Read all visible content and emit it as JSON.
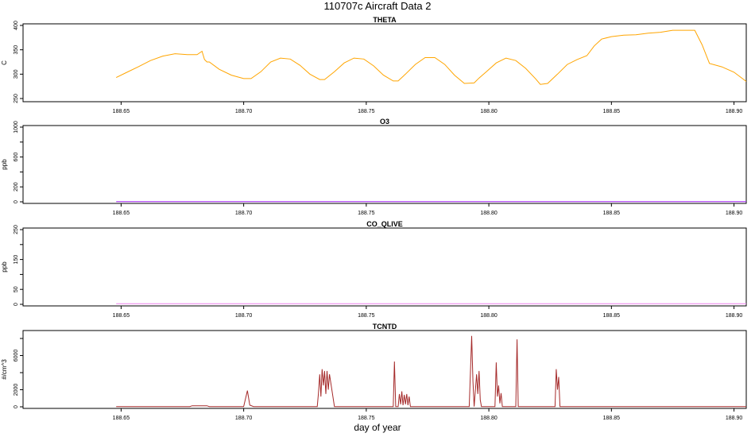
{
  "page": {
    "title": "110707c   Aircraft Data 2",
    "xlabel": "day of year"
  },
  "chart_data": [
    {
      "type": "line",
      "title": "THETA",
      "ylabel": "C",
      "xlim": [
        188.61,
        188.905
      ],
      "ylim": [
        250,
        400
      ],
      "xticks": [
        "188.65",
        "188.70",
        "188.75",
        "188.80",
        "188.85",
        "188.90"
      ],
      "yticks": [
        "250",
        "300",
        "350",
        "400"
      ],
      "color": "#FFA500",
      "series": [
        {
          "x": [
            188.648,
            188.652,
            188.657,
            188.662,
            188.667,
            188.672,
            188.677,
            188.681,
            188.683,
            188.684,
            188.685,
            188.686,
            188.69,
            188.695,
            188.7,
            188.703,
            188.707,
            188.711,
            188.715,
            188.719,
            188.723,
            188.727,
            188.731,
            188.733,
            188.737,
            188.741,
            188.745,
            188.749,
            188.753,
            188.757,
            188.761,
            188.763,
            188.766,
            188.77,
            188.774,
            188.778,
            188.782,
            188.786,
            188.79,
            188.794,
            188.796,
            188.799,
            188.803,
            188.807,
            188.811,
            188.815,
            188.819,
            188.821,
            188.824,
            188.828,
            188.832,
            188.836,
            188.84,
            188.843,
            188.846,
            188.85,
            188.855,
            188.86,
            188.865,
            188.87,
            188.875,
            188.88,
            188.884,
            188.887,
            188.89,
            188.895,
            188.9,
            188.905
          ],
          "y": [
            293,
            303,
            315,
            328,
            337,
            342,
            340,
            340,
            347,
            330,
            325,
            325,
            310,
            298,
            291,
            291,
            305,
            325,
            333,
            331,
            318,
            300,
            289,
            289,
            305,
            323,
            333,
            331,
            317,
            298,
            286,
            286,
            300,
            320,
            334,
            334,
            320,
            298,
            281,
            282,
            292,
            305,
            323,
            333,
            328,
            312,
            291,
            279,
            281,
            300,
            320,
            330,
            338,
            358,
            372,
            377,
            380,
            381,
            384,
            386,
            390,
            390,
            390,
            360,
            322,
            315,
            304,
            285
          ]
        }
      ]
    },
    {
      "type": "line",
      "title": "O3",
      "ylabel": "ppb",
      "xlim": [
        188.61,
        188.905
      ],
      "ylim": [
        0,
        1000
      ],
      "xticks": [
        "188.65",
        "188.70",
        "188.75",
        "188.80",
        "188.85",
        "188.90"
      ],
      "yticks": [
        "0",
        "200",
        "600",
        "1000"
      ],
      "color": "#A020F0",
      "series": [
        {
          "x": [
            188.648,
            188.905
          ],
          "y": [
            2,
            2
          ]
        }
      ]
    },
    {
      "type": "line",
      "title": "CO_QLIVE",
      "ylabel": "ppb",
      "xlim": [
        188.61,
        188.905
      ],
      "ylim": [
        0,
        250
      ],
      "xticks": [
        "188.65",
        "188.70",
        "188.75",
        "188.80",
        "188.85",
        "188.90"
      ],
      "yticks": [
        "0",
        "50",
        "150",
        "250"
      ],
      "color": "#EE82EE",
      "series": [
        {
          "x": [
            188.648,
            188.905
          ],
          "y": [
            2,
            2
          ]
        }
      ]
    },
    {
      "type": "line",
      "title": "TCNTD",
      "ylabel": "#/cm^3",
      "xlim": [
        188.61,
        188.905
      ],
      "ylim": [
        0,
        8000
      ],
      "xticks": [
        "188.65",
        "188.70",
        "188.75",
        "188.80",
        "188.85",
        "188.90"
      ],
      "yticks": [
        "0",
        "2000",
        "6000"
      ],
      "color": "#A52A2A",
      "series": [
        {
          "x": [
            188.648,
            188.678,
            188.679,
            188.685,
            188.686,
            188.7,
            188.7015,
            188.7025,
            188.704,
            188.73,
            188.7305,
            188.731,
            188.7315,
            188.732,
            188.7325,
            188.733,
            188.7335,
            188.734,
            188.7345,
            188.735,
            188.737,
            188.761,
            188.7615,
            188.762,
            188.763,
            188.7635,
            188.764,
            188.7645,
            188.765,
            188.7655,
            188.766,
            188.7665,
            188.767,
            188.7675,
            188.768,
            188.792,
            188.7925,
            188.793,
            188.7935,
            188.794,
            188.795,
            188.7955,
            188.796,
            188.7965,
            188.797,
            188.8025,
            188.803,
            188.8035,
            188.804,
            188.8045,
            188.805,
            188.8055,
            188.811,
            188.8115,
            188.812,
            188.827,
            188.8275,
            188.828,
            188.8285,
            188.829,
            188.905
          ],
          "y": [
            30,
            30,
            120,
            120,
            30,
            30,
            1900,
            200,
            30,
            30,
            1600,
            3800,
            1200,
            4400,
            2500,
            4200,
            1500,
            4200,
            2000,
            3800,
            30,
            30,
            5300,
            30,
            30,
            1500,
            300,
            1800,
            200,
            1400,
            300,
            1500,
            200,
            1200,
            30,
            30,
            4200,
            8300,
            3000,
            30,
            3800,
            1500,
            4200,
            800,
            30,
            30,
            5200,
            1200,
            2500,
            400,
            1600,
            30,
            30,
            7900,
            30,
            30,
            4400,
            2000,
            3500,
            30,
            30
          ]
        }
      ]
    }
  ]
}
